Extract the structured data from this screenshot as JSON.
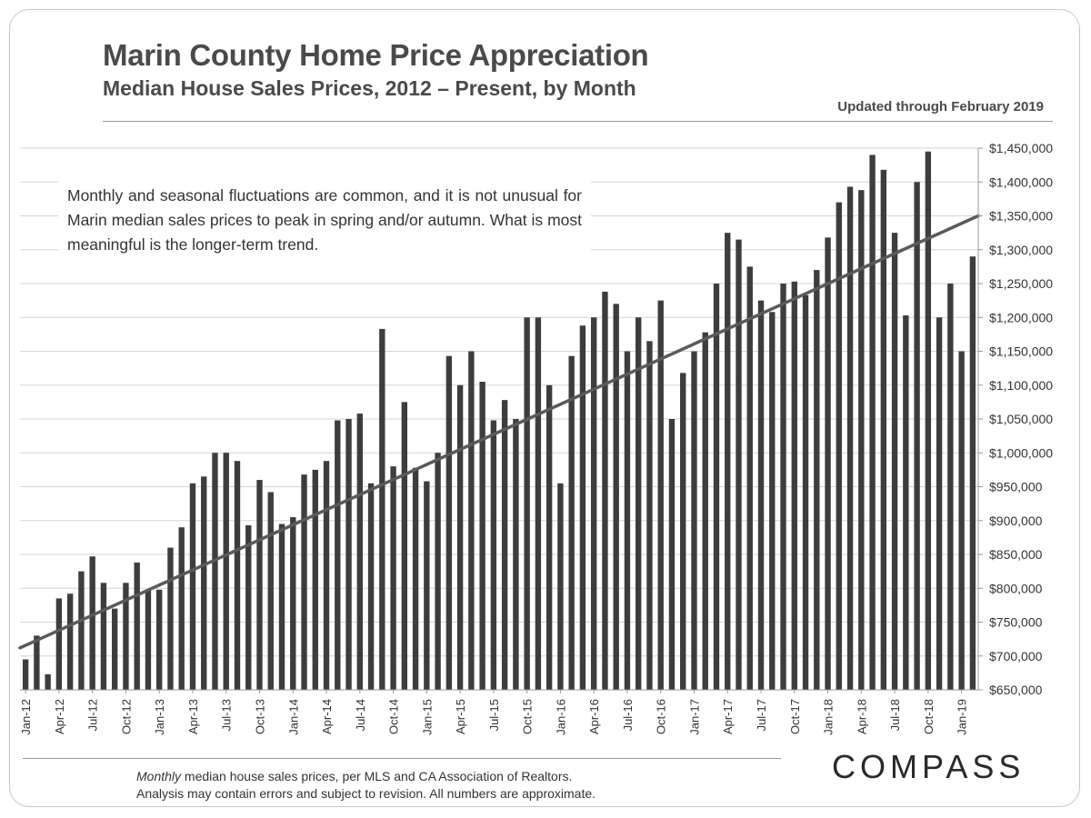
{
  "header": {
    "title": "Marin County Home Price Appreciation",
    "subtitle": "Median House Sales Prices, 2012 – Present, by Month",
    "updated": "Updated through February 2019"
  },
  "annotation": "Monthly and seasonal fluctuations are common, and it is not unusual for Marin median sales prices to peak in spring and/or autumn. What is most meaningful is the longer-term trend.",
  "footer": {
    "line1_italic": "Monthly",
    "line1_rest": " median house sales prices, per MLS and CA Association of Realtors.",
    "line2": "Analysis may contain errors and subject to revision. All numbers are approximate.",
    "logo": "COMPASS"
  },
  "colors": {
    "bar": "#3d3d3d",
    "trend": "#5a5a5a",
    "grid": "#d6d6d6",
    "axis_text": "#333333"
  },
  "chart_data": {
    "type": "bar",
    "title": "Marin County Home Price Appreciation",
    "subtitle": "Median House Sales Prices, 2012 – Present, by Month",
    "xlabel": "",
    "ylabel": "",
    "ylim": [
      650000,
      1450000
    ],
    "ytick_step": 50000,
    "y_axis_side": "right",
    "grid": true,
    "categories": [
      "Jan-12",
      "Feb-12",
      "Mar-12",
      "Apr-12",
      "May-12",
      "Jun-12",
      "Jul-12",
      "Aug-12",
      "Sep-12",
      "Oct-12",
      "Nov-12",
      "Dec-12",
      "Jan-13",
      "Feb-13",
      "Mar-13",
      "Apr-13",
      "May-13",
      "Jun-13",
      "Jul-13",
      "Aug-13",
      "Sep-13",
      "Oct-13",
      "Nov-13",
      "Dec-13",
      "Jan-14",
      "Feb-14",
      "Mar-14",
      "Apr-14",
      "May-14",
      "Jun-14",
      "Jul-14",
      "Aug-14",
      "Sep-14",
      "Oct-14",
      "Nov-14",
      "Dec-14",
      "Jan-15",
      "Feb-15",
      "Mar-15",
      "Apr-15",
      "May-15",
      "Jun-15",
      "Jul-15",
      "Aug-15",
      "Sep-15",
      "Oct-15",
      "Nov-15",
      "Dec-15",
      "Jan-16",
      "Feb-16",
      "Mar-16",
      "Apr-16",
      "May-16",
      "Jun-16",
      "Jul-16",
      "Aug-16",
      "Sep-16",
      "Oct-16",
      "Nov-16",
      "Dec-16",
      "Jan-17",
      "Feb-17",
      "Mar-17",
      "Apr-17",
      "May-17",
      "Jun-17",
      "Jul-17",
      "Aug-17",
      "Sep-17",
      "Oct-17",
      "Nov-17",
      "Dec-17",
      "Jan-18",
      "Feb-18",
      "Mar-18",
      "Apr-18",
      "May-18",
      "Jun-18",
      "Jul-18",
      "Aug-18",
      "Sep-18",
      "Oct-18",
      "Nov-18",
      "Dec-18",
      "Jan-19",
      "Feb-19"
    ],
    "tick_labels": [
      "Jan-12",
      "Apr-12",
      "Jul-12",
      "Oct-12",
      "Jan-13",
      "Apr-13",
      "Jul-13",
      "Oct-13",
      "Jan-14",
      "Apr-14",
      "Jul-14",
      "Oct-14",
      "Jan-15",
      "Apr-15",
      "Jul-15",
      "Oct-15",
      "Jan-16",
      "Apr-16",
      "Jul-16",
      "Oct-16",
      "Jan-17",
      "Apr-17",
      "Jul-17",
      "Oct-17",
      "Jan-18",
      "Apr-18",
      "Jul-18",
      "Oct-18",
      "Jan-19"
    ],
    "values": [
      695000,
      730000,
      673000,
      785000,
      792000,
      825000,
      847000,
      808000,
      770000,
      808000,
      838000,
      797000,
      798000,
      860000,
      890000,
      955000,
      965000,
      1000000,
      1000000,
      988000,
      893000,
      960000,
      942000,
      895000,
      905000,
      968000,
      975000,
      988000,
      1048000,
      1050000,
      1058000,
      955000,
      1183000,
      980000,
      1075000,
      978000,
      958000,
      1000000,
      1143000,
      1100000,
      1150000,
      1105000,
      1048000,
      1078000,
      1050000,
      1200000,
      1200000,
      1100000,
      955000,
      1143000,
      1188000,
      1200000,
      1238000,
      1220000,
      1150000,
      1200000,
      1165000,
      1225000,
      1050000,
      1118000,
      1150000,
      1178000,
      1250000,
      1325000,
      1315000,
      1275000,
      1225000,
      1208000,
      1250000,
      1253000,
      1233000,
      1270000,
      1318000,
      1370000,
      1393000,
      1388000,
      1440000,
      1418000,
      1325000,
      1203000,
      1400000,
      1445000,
      1200000,
      1250000,
      1150000,
      1290000
    ],
    "trendline": {
      "start": 712000,
      "end": 1350000
    }
  }
}
